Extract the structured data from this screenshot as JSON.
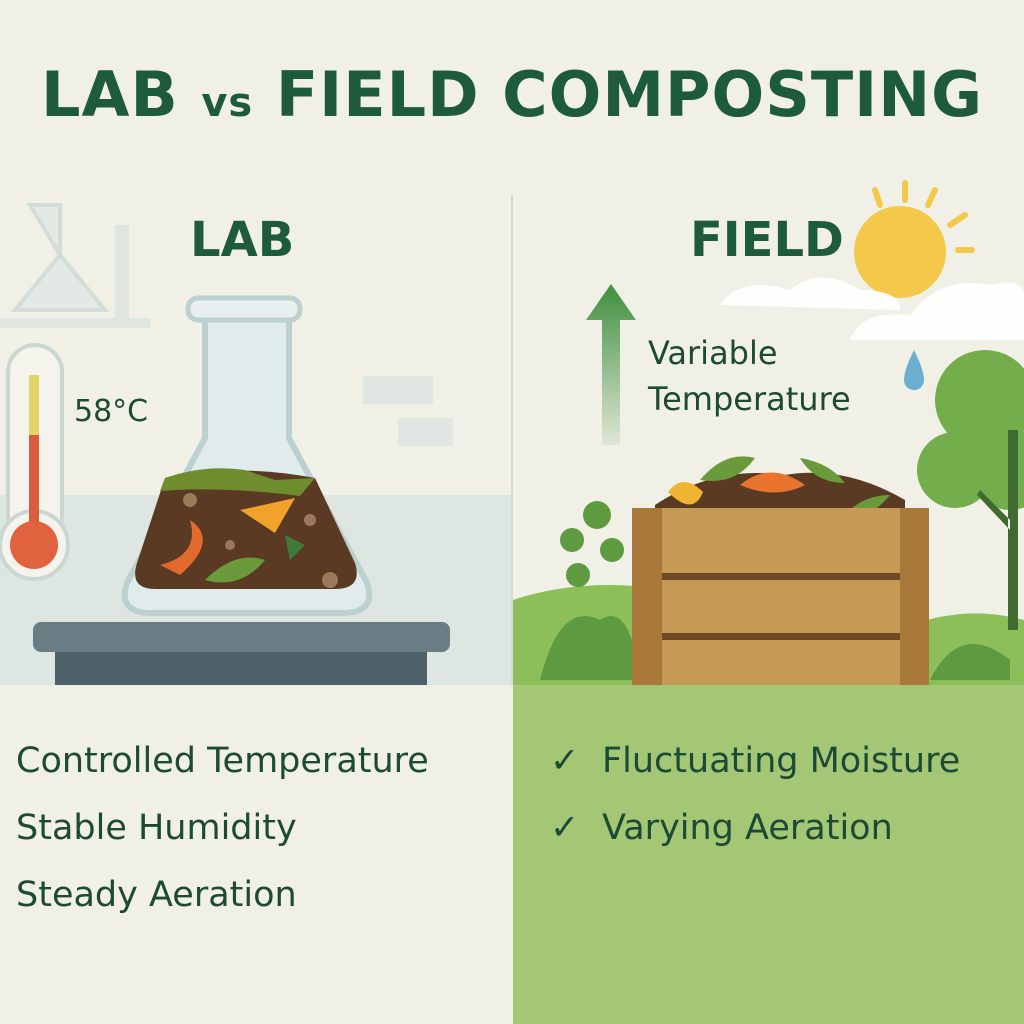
{
  "title": {
    "part1": "LAB",
    "vs": "vs",
    "part2": "FIELD COMPOSTING"
  },
  "lab": {
    "heading": "LAB",
    "thermometer_reading": "58°C",
    "features": [
      "Controlled Temperature",
      "Stable Humidity",
      "Steady Aeration"
    ]
  },
  "field": {
    "heading": "FIELD",
    "variable_label_line1": "Variable",
    "variable_label_line2": "Temperature",
    "features": [
      "Fluctuating Moisture",
      "Varying Aeration"
    ],
    "check_icon": "✓"
  },
  "colors": {
    "title": "#1e5a3c",
    "field_panel": "#a4c775",
    "background": "#f1f0e6"
  }
}
